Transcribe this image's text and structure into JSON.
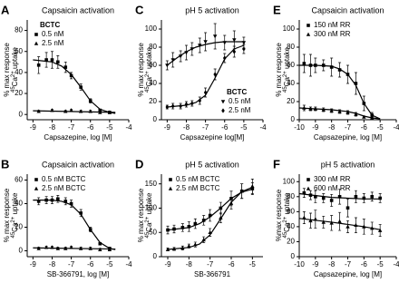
{
  "chart_data": [
    {
      "type": "scatter",
      "letter": "A",
      "title": "Capsaicin activation",
      "x_label": "Capsazepine, log [M]",
      "y_label": {
        "line1": "% max response",
        "sup1": "45",
        "base": "Ca",
        "sup2": "2+",
        "rest": " uptake"
      },
      "legend_title": "BCTC",
      "legend": "upper-left",
      "xlim": [
        -9.3,
        -4
      ],
      "xticks": [
        -9,
        -8,
        -7,
        -6,
        -5,
        -4
      ],
      "ylim": [
        -5,
        90
      ],
      "yticks": [
        0,
        20,
        40,
        60,
        80
      ],
      "series": [
        {
          "name": "0.5 nM",
          "marker": "square",
          "color": "#000000",
          "x": [
            -8.7,
            -8.3,
            -8,
            -7.7,
            -7.3,
            -7,
            -6.5,
            -6,
            -5.5,
            -5
          ],
          "values": [
            47,
            52,
            52,
            50,
            45,
            37,
            26,
            13,
            4,
            2
          ],
          "errors": [
            8,
            7,
            8,
            6,
            5,
            3,
            3,
            2,
            1,
            1
          ]
        },
        {
          "name": "2.5 nM",
          "marker": "triangle",
          "color": "#000000",
          "x": [
            -8.7,
            -8,
            -7.3,
            -7,
            -6.5,
            -6,
            -5.5,
            -5
          ],
          "values": [
            3,
            4,
            3,
            4,
            3,
            3,
            2,
            2
          ],
          "errors": [
            1,
            1,
            1,
            1,
            1,
            1,
            1,
            1
          ]
        }
      ],
      "fits": [
        {
          "x": [
            -9,
            -8.5,
            -8,
            -7.5,
            -7,
            -6.5,
            -6,
            -5.5,
            -5,
            -4.7
          ],
          "values": [
            52,
            51,
            50,
            46,
            38,
            26,
            13,
            5,
            2,
            1
          ]
        },
        {
          "x": [
            -9,
            -4.7
          ],
          "values": [
            3.5,
            2
          ]
        }
      ]
    },
    {
      "type": "scatter",
      "letter": "C",
      "title": "pH 5 activation",
      "x_label": "Capsazepine log[M]",
      "y_label": {
        "line1": "% max response",
        "sup1": "45",
        "base": "Ca",
        "sup2": "2+",
        "rest": " uptake"
      },
      "legend_title": "BCTC",
      "legend": "lower-right",
      "xlim": [
        -9.3,
        -4
      ],
      "xticks": [
        -9,
        -8,
        -7,
        -6,
        -5,
        -4
      ],
      "ylim": [
        0,
        110
      ],
      "yticks": [
        0,
        20,
        40,
        60,
        80,
        100
      ],
      "series": [
        {
          "name": "0.5 nM",
          "marker": "triangle-down",
          "color": "#000000",
          "x": [
            -9,
            -8.7,
            -8.3,
            -8,
            -7.7,
            -7.3,
            -7,
            -6.5,
            -6,
            -5.5,
            -5
          ],
          "values": [
            60,
            66,
            70,
            74,
            78,
            82,
            86,
            92,
            85,
            88,
            85
          ],
          "errors": [
            5,
            8,
            6,
            8,
            7,
            8,
            10,
            14,
            8,
            10,
            6
          ]
        },
        {
          "name": "2.5 nM",
          "marker": "diamond",
          "color": "#000000",
          "x": [
            -9,
            -8.7,
            -8.3,
            -8,
            -7.7,
            -7.3,
            -7,
            -6.5,
            -6,
            -5.5,
            -5
          ],
          "values": [
            14,
            15,
            15,
            17,
            18,
            21,
            30,
            50,
            68,
            75,
            78
          ],
          "errors": [
            2,
            3,
            3,
            3,
            3,
            4,
            5,
            6,
            5,
            6,
            5
          ]
        }
      ],
      "fits": [
        {
          "x": [
            -9,
            -8.5,
            -8,
            -7.5,
            -7,
            -6.5,
            -6,
            -5.5,
            -5
          ],
          "values": [
            60,
            68,
            75,
            80,
            83,
            85,
            86,
            86,
            86
          ]
        },
        {
          "x": [
            -9,
            -8.5,
            -8,
            -7.5,
            -7,
            -6.5,
            -6,
            -5.5,
            -5
          ],
          "values": [
            14,
            15,
            16,
            19,
            27,
            46,
            67,
            78,
            82
          ]
        }
      ]
    },
    {
      "type": "scatter",
      "letter": "E",
      "title": "Capsaicin activation",
      "x_label": "Capsazepine, log [M]",
      "y_label": {
        "line1": "% max response",
        "sup1": "45",
        "base": "Ca",
        "sup2": "2+",
        "rest": " uptake"
      },
      "legend": "upper-left",
      "xlim": [
        -10,
        -4
      ],
      "xticks": [
        -10,
        -9,
        -8,
        -7,
        -6,
        -5,
        -4
      ],
      "ylim": [
        0,
        110
      ],
      "yticks": [
        0,
        20,
        40,
        60,
        80,
        100
      ],
      "series": [
        {
          "name": "150 nM RR",
          "marker": "square",
          "color": "#000000",
          "x": [
            -9.7,
            -9.3,
            -9,
            -8.5,
            -8,
            -7.5,
            -7,
            -6.5,
            -6,
            -5.5
          ],
          "values": [
            62,
            60,
            60,
            60,
            58,
            55,
            50,
            40,
            18,
            5
          ],
          "errors": [
            10,
            12,
            8,
            6,
            10,
            8,
            10,
            12,
            8,
            3
          ]
        },
        {
          "name": "300 nM RR",
          "marker": "triangle",
          "color": "#000000",
          "x": [
            -9.7,
            -9.3,
            -9,
            -8.5,
            -8,
            -7.5,
            -7,
            -6.5,
            -6,
            -5.5
          ],
          "values": [
            13,
            12,
            12,
            11,
            10,
            9,
            8,
            6,
            3,
            2
          ],
          "errors": [
            3,
            2,
            2,
            2,
            2,
            2,
            2,
            2,
            1,
            1
          ]
        }
      ],
      "fits": [
        {
          "x": [
            -10,
            -9,
            -8,
            -7.5,
            -7,
            -6.5,
            -6,
            -5.5,
            -5
          ],
          "values": [
            60,
            60,
            59,
            56,
            50,
            38,
            18,
            5,
            1
          ]
        },
        {
          "x": [
            -10,
            -9,
            -8,
            -7,
            -6.5,
            -6,
            -5.5,
            -5
          ],
          "values": [
            13,
            12,
            11,
            9,
            7,
            4,
            2,
            1
          ]
        }
      ]
    },
    {
      "type": "scatter",
      "letter": "B",
      "title": "Capsaicin activation",
      "x_label": "SB-366791, log [M]",
      "y_label": {
        "line1": "% max response",
        "sup1": "45",
        "base": "Ca",
        "sup2": "2+",
        "rest": " uptake"
      },
      "legend": "upper-left",
      "xlim": [
        -9.3,
        -4
      ],
      "xticks": [
        -9,
        -8,
        -7,
        -6,
        -5,
        -4
      ],
      "ylim": [
        -5,
        65
      ],
      "yticks": [
        0,
        20,
        40,
        60
      ],
      "series": [
        {
          "name": "0.5 nM BCTC",
          "marker": "square",
          "color": "#000000",
          "x": [
            -8.7,
            -8.3,
            -8,
            -7.7,
            -7.3,
            -7,
            -6.5,
            -6,
            -5.5,
            -5
          ],
          "values": [
            42,
            43,
            43,
            44,
            42,
            40,
            32,
            18,
            6,
            2
          ],
          "errors": [
            3,
            3,
            3,
            3,
            3,
            3,
            3,
            2,
            1,
            1
          ]
        },
        {
          "name": "2.5 nM BCTC",
          "marker": "triangle",
          "color": "#000000",
          "x": [
            -8.7,
            -8.3,
            -8,
            -7.7,
            -7.3,
            -7,
            -6.5,
            -6,
            -5.5,
            -5
          ],
          "values": [
            2,
            3,
            3,
            2,
            2,
            3,
            2,
            2,
            1,
            1
          ],
          "errors": [
            1,
            1,
            1,
            1,
            1,
            1,
            1,
            1,
            1,
            1
          ]
        }
      ],
      "fits": [
        {
          "x": [
            -9,
            -8,
            -7.5,
            -7,
            -6.5,
            -6,
            -5.5,
            -5,
            -4.7
          ],
          "values": [
            43,
            43,
            42,
            39,
            31,
            18,
            7,
            2,
            1
          ]
        },
        {
          "x": [
            -9,
            -4.7
          ],
          "values": [
            2.5,
            1.5
          ]
        }
      ]
    },
    {
      "type": "scatter",
      "letter": "D",
      "title": "pH 5 activation",
      "x_label": "SB-366791",
      "y_label": {
        "line1": "% max response",
        "sup1": "45",
        "base": "Ca",
        "sup2": "2+",
        "rest": " uptake"
      },
      "legend": "upper-left",
      "xlim": [
        -9.3,
        -4.5
      ],
      "xticks": [
        -9,
        -8,
        -7,
        -6,
        -5
      ],
      "ylim": [
        0,
        170
      ],
      "yticks": [
        0,
        50,
        100,
        150
      ],
      "series": [
        {
          "name": "0.5 nM BCTC",
          "marker": "square",
          "color": "#000000",
          "x": [
            -9,
            -8.7,
            -8.3,
            -8,
            -7.7,
            -7.3,
            -7,
            -6.5,
            -6,
            -5.5,
            -5
          ],
          "values": [
            55,
            57,
            60,
            62,
            68,
            75,
            85,
            100,
            120,
            135,
            140
          ],
          "errors": [
            8,
            8,
            8,
            10,
            10,
            10,
            12,
            12,
            15,
            15,
            12
          ]
        },
        {
          "name": "2.5 nM BCTC",
          "marker": "triangle",
          "color": "#000000",
          "x": [
            -9,
            -8.7,
            -8.3,
            -8,
            -7.7,
            -7.3,
            -7,
            -6.5,
            -6,
            -5.5,
            -5
          ],
          "values": [
            15,
            16,
            18,
            22,
            25,
            35,
            50,
            80,
            110,
            135,
            145
          ],
          "errors": [
            3,
            3,
            4,
            4,
            5,
            6,
            8,
            10,
            12,
            15,
            15
          ]
        }
      ],
      "fits": [
        {
          "x": [
            -9,
            -8,
            -7.5,
            -7,
            -6.5,
            -6,
            -5.5,
            -5
          ],
          "values": [
            55,
            60,
            68,
            82,
            100,
            120,
            133,
            139
          ]
        },
        {
          "x": [
            -9,
            -8,
            -7.5,
            -7,
            -6.5,
            -6,
            -5.5,
            -5
          ],
          "values": [
            15,
            19,
            26,
            45,
            78,
            112,
            134,
            143
          ]
        }
      ]
    },
    {
      "type": "scatter",
      "letter": "F",
      "title": "pH 5 activation",
      "x_label": "Capsazepine, log [M]",
      "y_label": {
        "line1": "%max response",
        "sup1": "45",
        "base": "Ca",
        "sup2": "2+",
        "rest": " uptake"
      },
      "legend": "upper-left",
      "xlim": [
        -10,
        -4
      ],
      "xticks": [
        -10,
        -9,
        -8,
        -7,
        -6,
        -5,
        -4
      ],
      "ylim": [
        0,
        110
      ],
      "yticks": [
        0,
        20,
        40,
        60,
        80,
        100
      ],
      "series": [
        {
          "name": "300 nM RR",
          "marker": "square",
          "color": "#000000",
          "x": [
            -9.7,
            -9.3,
            -9,
            -8.5,
            -8,
            -7.5,
            -7,
            -6.5,
            -6,
            -5.5,
            -5
          ],
          "values": [
            85,
            82,
            80,
            78,
            75,
            80,
            65,
            80,
            78,
            80,
            78
          ],
          "errors": [
            6,
            6,
            8,
            6,
            8,
            10,
            12,
            8,
            6,
            6,
            6
          ]
        },
        {
          "name": "600 nM RR",
          "marker": "triangle",
          "color": "#000000",
          "x": [
            -9.7,
            -9.3,
            -9,
            -8.5,
            -8,
            -7.5,
            -7,
            -6.5,
            -6,
            -5.5,
            -5
          ],
          "values": [
            52,
            48,
            50,
            46,
            45,
            47,
            40,
            42,
            40,
            38,
            35
          ],
          "errors": [
            8,
            10,
            12,
            8,
            10,
            12,
            8,
            10,
            10,
            8,
            8
          ]
        }
      ],
      "fits": [
        {
          "x": [
            -10,
            -8,
            -6,
            -5
          ],
          "values": [
            84,
            79,
            77,
            77
          ]
        },
        {
          "x": [
            -10,
            -8,
            -6,
            -5
          ],
          "values": [
            51,
            46,
            40,
            36
          ]
        }
      ]
    }
  ]
}
